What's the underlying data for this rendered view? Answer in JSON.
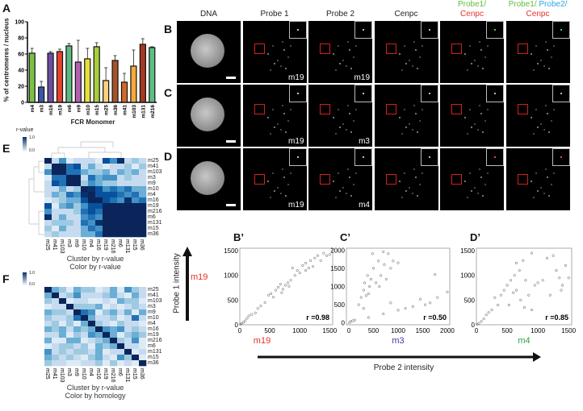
{
  "panel_labels": {
    "A": "A",
    "B": "B",
    "C": "C",
    "D": "D",
    "E": "E",
    "F": "F",
    "Bp": "B’",
    "Cp": "C’",
    "Dp": "D’"
  },
  "panel_a": {
    "chart_data": {
      "type": "bar",
      "title": "",
      "xlabel": "FCR Monomer",
      "ylabel": "% of centromeres / nucleus",
      "ylim": [
        0,
        100
      ],
      "yticks": [
        "0",
        "20",
        "40",
        "60",
        "80",
        "100"
      ],
      "categories": [
        "m4",
        "m3",
        "m16",
        "m19",
        "m6",
        "m9",
        "m10",
        "m15",
        "m25",
        "m36",
        "m41",
        "m103",
        "m131",
        "m216"
      ],
      "values": [
        61,
        19,
        61,
        63,
        70,
        50,
        54,
        69,
        27,
        52,
        25,
        45,
        72,
        68
      ],
      "errors": [
        6,
        7,
        2,
        3,
        3,
        27,
        13,
        5,
        16,
        6,
        11,
        20,
        7,
        1
      ],
      "colors": [
        "#7ac143",
        "#3a56a5",
        "#6b4fa0",
        "#e8412e",
        "#5dbb7e",
        "#b45fb0",
        "#e5e03a",
        "#a6cf3c",
        "#f9d27a",
        "#a4532a",
        "#d2692a",
        "#f5a93a",
        "#a23a23",
        "#5bbf82"
      ]
    }
  },
  "microscopy": {
    "columns": [
      {
        "line1": "",
        "line1b": "",
        "line2": "DNA",
        "c1": "#222",
        "c1b": "#222",
        "c2": "#222"
      },
      {
        "line1": "",
        "line1b": "",
        "line2": "Probe 1",
        "c1": "#222",
        "c1b": "#222",
        "c2": "#222"
      },
      {
        "line1": "",
        "line1b": "",
        "line2": "Probe 2",
        "c1": "#222",
        "c1b": "#222",
        "c2": "#222"
      },
      {
        "line1": "",
        "line1b": "",
        "line2": "Cenpc",
        "c1": "#222",
        "c1b": "#222",
        "c2": "#222"
      },
      {
        "line1": "Probe1/",
        "line1b": "",
        "line2": "Cenpc",
        "c1": "#5fbf3c",
        "c1b": "#222",
        "c2": "#e8302a"
      },
      {
        "line1": "Probe1/",
        "line1b": " Probe2/",
        "line2": "Cenpc",
        "c1": "#5fbf3c",
        "c1b": "#2aa8e0",
        "c2": "#e8302a"
      }
    ],
    "rows": [
      {
        "label": "B",
        "tags": [
          "",
          "m19",
          "m19",
          "",
          "",
          ""
        ],
        "dotcolors": [
          "#fff",
          "#fff",
          "#fff",
          "#fff",
          "#7dff5a",
          "#5affc8"
        ]
      },
      {
        "label": "C",
        "tags": [
          "",
          "m19",
          "m3",
          "",
          "",
          ""
        ],
        "dotcolors": [
          "#fff",
          "#fff",
          "#fff",
          "#fff",
          "#dfffd0",
          "#dfffd0"
        ]
      },
      {
        "label": "D",
        "tags": [
          "",
          "m19",
          "m4",
          "",
          "",
          ""
        ],
        "dotcolors": [
          "#fff",
          "#fff",
          "#fff",
          "#fff",
          "#ff6fa0",
          "#ff6fa0"
        ]
      }
    ]
  },
  "scatter": {
    "y_axis_title": "Probe 1 intensity",
    "x_axis_title": "Probe 2 intensity",
    "y_probe": {
      "label": "m19",
      "color": "#e8302a"
    },
    "chart_data": [
      {
        "type": "scatter",
        "label": "B’",
        "xname": "m19",
        "xcolor": "#e8302a",
        "r": "r =0.98",
        "xlim": [
          0,
          1550
        ],
        "ylim": [
          0,
          1550
        ],
        "xticks": [
          0,
          500,
          1000,
          1500
        ],
        "yticks": [
          0,
          500,
          1000,
          1500
        ],
        "points": [
          [
            10,
            10
          ],
          [
            30,
            25
          ],
          [
            60,
            50
          ],
          [
            90,
            80
          ],
          [
            120,
            130
          ],
          [
            150,
            180
          ],
          [
            200,
            210
          ],
          [
            260,
            240
          ],
          [
            300,
            330
          ],
          [
            350,
            380
          ],
          [
            420,
            450
          ],
          [
            480,
            600
          ],
          [
            520,
            630
          ],
          [
            600,
            700
          ],
          [
            640,
            760
          ],
          [
            680,
            820
          ],
          [
            720,
            720
          ],
          [
            760,
            800
          ],
          [
            800,
            850
          ],
          [
            850,
            900
          ],
          [
            880,
            1150
          ],
          [
            920,
            1000
          ],
          [
            960,
            1100
          ],
          [
            1000,
            1050
          ],
          [
            1050,
            1200
          ],
          [
            1100,
            1250
          ],
          [
            1150,
            1150
          ],
          [
            1180,
            1300
          ],
          [
            1220,
            1180
          ],
          [
            1250,
            1350
          ],
          [
            1300,
            1400
          ],
          [
            1350,
            1300
          ],
          [
            1400,
            1450
          ],
          [
            1450,
            1400
          ],
          [
            1500,
            1420
          ],
          [
            1100,
            1100
          ],
          [
            700,
            650
          ],
          [
            560,
            560
          ],
          [
            820,
            780
          ]
        ]
      },
      {
        "type": "scatter",
        "label": "C’",
        "xname": "m3",
        "xcolor": "#3a3aa8",
        "r": "r =0.50",
        "xlim": [
          -50,
          2050
        ],
        "ylim": [
          -50,
          2050
        ],
        "xticks": [
          0,
          500,
          1000,
          1500,
          2000
        ],
        "yticks": [
          0,
          500,
          1000,
          1500,
          2000
        ],
        "points": [
          [
            10,
            10
          ],
          [
            40,
            40
          ],
          [
            80,
            60
          ],
          [
            120,
            80
          ],
          [
            200,
            500
          ],
          [
            250,
            700
          ],
          [
            300,
            900
          ],
          [
            320,
            1100
          ],
          [
            350,
            750
          ],
          [
            380,
            1300
          ],
          [
            400,
            800
          ],
          [
            420,
            1000
          ],
          [
            450,
            1200
          ],
          [
            480,
            1900
          ],
          [
            500,
            1500
          ],
          [
            550,
            1100
          ],
          [
            600,
            1700
          ],
          [
            620,
            1000
          ],
          [
            650,
            1300
          ],
          [
            700,
            1950
          ],
          [
            720,
            1600
          ],
          [
            760,
            1200
          ],
          [
            800,
            1900
          ],
          [
            850,
            1500
          ],
          [
            900,
            1700
          ],
          [
            1000,
            1650
          ],
          [
            700,
            250
          ],
          [
            850,
            550
          ],
          [
            1000,
            350
          ],
          [
            1150,
            400
          ],
          [
            1300,
            450
          ],
          [
            1450,
            650
          ],
          [
            1550,
            500
          ],
          [
            1650,
            550
          ],
          [
            1750,
            1330
          ],
          [
            1800,
            700
          ],
          [
            2000,
            850
          ],
          [
            400,
            150
          ],
          [
            300,
            400
          ]
        ]
      },
      {
        "type": "scatter",
        "label": "D’",
        "xname": "m4",
        "xcolor": "#2aa84a",
        "r": "r =0.85",
        "xlim": [
          0,
          1550
        ],
        "ylim": [
          0,
          1550
        ],
        "xticks": [
          0,
          500,
          1000,
          1500
        ],
        "yticks": [
          0,
          500,
          1000,
          1500
        ],
        "points": [
          [
            10,
            10
          ],
          [
            40,
            30
          ],
          [
            80,
            70
          ],
          [
            120,
            120
          ],
          [
            160,
            200
          ],
          [
            200,
            250
          ],
          [
            250,
            300
          ],
          [
            300,
            550
          ],
          [
            350,
            400
          ],
          [
            400,
            600
          ],
          [
            450,
            700
          ],
          [
            500,
            800
          ],
          [
            530,
            400
          ],
          [
            560,
            900
          ],
          [
            600,
            650
          ],
          [
            620,
            1000
          ],
          [
            650,
            1250
          ],
          [
            700,
            1100
          ],
          [
            720,
            500
          ],
          [
            760,
            1300
          ],
          [
            800,
            900
          ],
          [
            850,
            600
          ],
          [
            900,
            1450
          ],
          [
            950,
            800
          ],
          [
            1000,
            850
          ],
          [
            1080,
            900
          ],
          [
            1150,
            1350
          ],
          [
            1200,
            600
          ],
          [
            1250,
            1400
          ],
          [
            1300,
            1100
          ],
          [
            1350,
            950
          ],
          [
            1400,
            800
          ],
          [
            1450,
            1200
          ],
          [
            1500,
            950
          ],
          [
            780,
            350
          ],
          [
            900,
            300
          ],
          [
            650,
            700
          ],
          [
            1380,
            700
          ]
        ]
      }
    ]
  },
  "heatmap_e": {
    "colorbar_title": "r-value",
    "cb_max": "1.0",
    "cb_min": "0.0",
    "labels": [
      "m25",
      "m41",
      "m103",
      "m3",
      "m9",
      "m10",
      "m4",
      "m16",
      "m19",
      "m216",
      "m6",
      "m131",
      "m15",
      "m36"
    ],
    "caption1": "Cluster by r-value",
    "caption2": "Color by r-value",
    "matrix": [
      "92512221758232",
      "29967242122313",
      "59966433424342",
      "16699264552322",
      "27699354332222",
      "22423987565644",
      "24365897776564",
      "12344799765856",
      "71453577999999",
      "52223676999999",
      "82422565999999",
      "23332658999999",
      "31422465999999",
      "23222446999999"
    ]
  },
  "heatmap_f": {
    "cb_max": "1.0",
    "cb_min": "0.0",
    "labels": [
      "m25",
      "m41",
      "m103",
      "m3",
      "m9",
      "m10",
      "m4",
      "m16",
      "m19",
      "m216",
      "m6",
      "m131",
      "m15",
      "m36"
    ],
    "caption1": "Cluster by r-value",
    "caption2": "Color by homology",
    "matrix": [
      "94314331241532",
      "49235222342142",
      "32912211214331",
      "12293334121232",
      "43329651342414",
      "32236942231262",
      "23131493213221",
      "43424349545232",
      "22413254941343",
      "41144123493251",
      "12332314349221",
      "52323324122912",
      "43232134215391",
      "32211223131219"
    ]
  }
}
